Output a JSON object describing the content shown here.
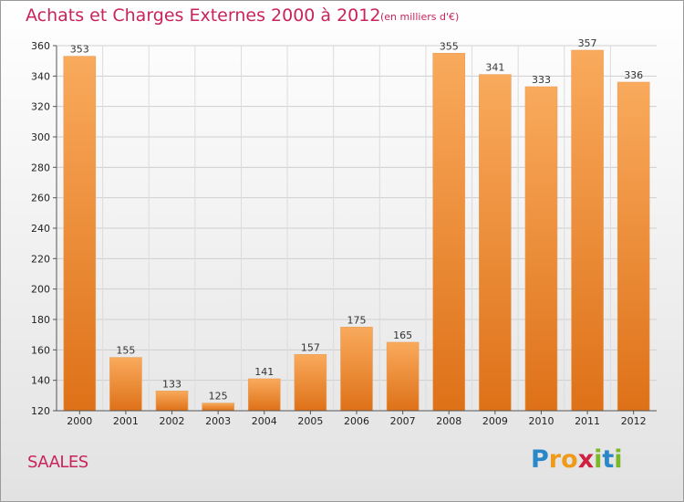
{
  "chart_data": {
    "type": "bar",
    "title": "Achats et Charges Externes 2000 à 2012",
    "subtitle": "(en milliers d'€)",
    "categories": [
      "2000",
      "2001",
      "2002",
      "2003",
      "2004",
      "2005",
      "2006",
      "2007",
      "2008",
      "2009",
      "2010",
      "2011",
      "2012"
    ],
    "values": [
      353,
      155,
      133,
      125,
      141,
      157,
      175,
      165,
      355,
      341,
      333,
      357,
      336
    ],
    "data_labels": [
      "353",
      "155",
      "133",
      "125",
      "141",
      "157",
      "175",
      "165",
      "355",
      "341",
      "333",
      "357",
      "336"
    ],
    "ylim": [
      120,
      360
    ],
    "yticks": [
      120,
      140,
      160,
      180,
      200,
      220,
      240,
      260,
      280,
      300,
      320,
      340,
      360
    ],
    "grid": true,
    "bar_color": "#f0862a"
  },
  "commune": "SAALES",
  "logo": {
    "letters": [
      "P",
      "r",
      "o",
      "x",
      "i",
      "t",
      "i"
    ],
    "colors": [
      "#2a88c8",
      "#f09a1a",
      "#f09a1a",
      "#d02040",
      "#7ab828",
      "#2a88c8",
      "#7ab828"
    ]
  },
  "colors": {
    "accent": "#c9245a",
    "bar_light": "#f8a85a",
    "bar_dark": "#e0761a"
  }
}
